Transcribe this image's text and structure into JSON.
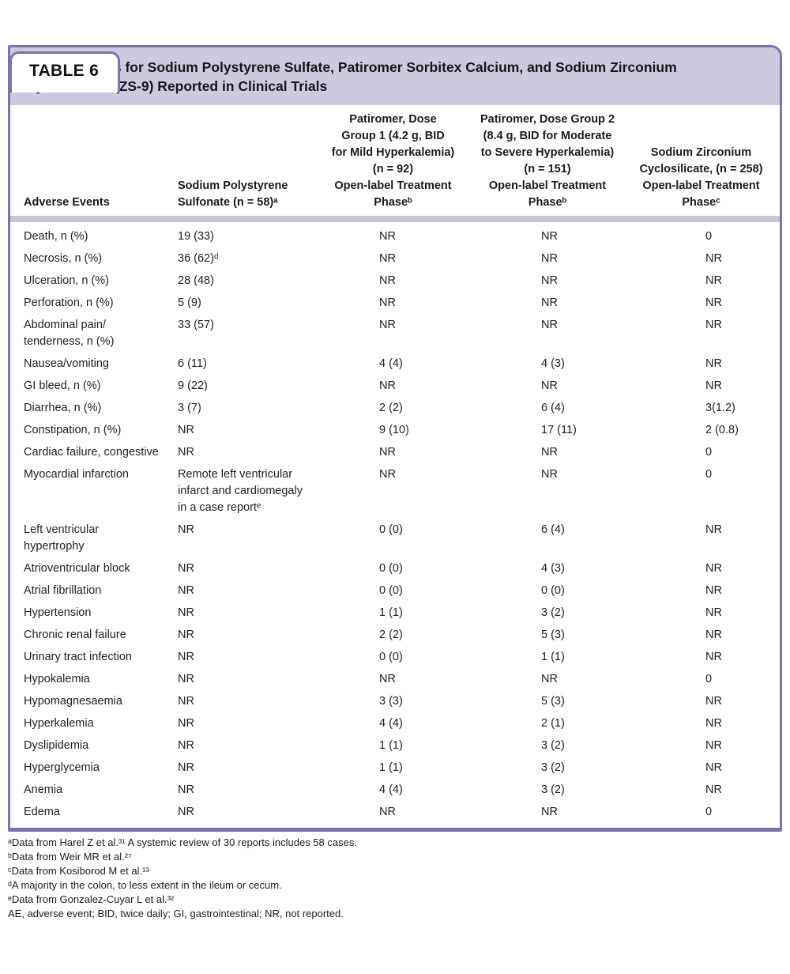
{
  "tag": "TABLE 6",
  "title": "Safety Results for Sodium Polystyrene Sulfate, Patiromer Sorbitex Calcium, and Sodium Zirconium\nCyclosilicate (ZS-9) Reported in Clinical Trials",
  "colors": {
    "border_purple": "#7a74ab",
    "title_band_lavender": "#cdcae0",
    "header_divider": "#c8c5db",
    "background": "#ffffff",
    "text": "#1e1e21"
  },
  "columns": [
    {
      "text": "Adverse Events"
    },
    {
      "text": "Sodium Polystyrene\nSulfonate (n = 58)ᵃ"
    },
    {
      "text": "Patiromer, Dose\nGroup 1 (4.2 g, BID\nfor Mild Hyperkalemia)\n(n = 92)\nOpen-label Treatment\nPhaseᵇ"
    },
    {
      "text": "Patiromer, Dose Group 2\n(8.4 g, BID for Moderate\nto Severe Hyperkalemia)\n(n = 151)\nOpen-label Treatment\nPhaseᵇ"
    },
    {
      "text": "Sodium Zirconium\nCyclosilicate, (n = 258)\nOpen-label Treatment\nPhaseᶜ"
    }
  ],
  "rows": [
    [
      "Death, n (%)",
      "19 (33)",
      "NR",
      "NR",
      "0"
    ],
    [
      "Necrosis, n (%)",
      "36 (62)ᵈ",
      "NR",
      "NR",
      "NR"
    ],
    [
      "Ulceration, n (%)",
      "28 (48)",
      "NR",
      "NR",
      "NR"
    ],
    [
      "Perforation, n (%)",
      "5 (9)",
      "NR",
      "NR",
      "NR"
    ],
    [
      "Abdominal pain/\ntenderness, n (%)",
      "33 (57)",
      "NR",
      "NR",
      "NR"
    ],
    [
      "Nausea/vomiting",
      "6 (11)",
      "4 (4)",
      "4 (3)",
      "NR"
    ],
    [
      "GI bleed, n (%)",
      "9 (22)",
      "NR",
      "NR",
      "NR"
    ],
    [
      "Diarrhea, n (%)",
      "3 (7)",
      "2 (2)",
      "6 (4)",
      "3(1.2)"
    ],
    [
      "Constipation, n (%)",
      "NR",
      "9 (10)",
      "17 (11)",
      "2 (0.8)"
    ],
    [
      "Cardiac failure, congestive",
      "NR",
      "NR",
      "NR",
      "0"
    ],
    [
      "Myocardial infarction",
      "Remote left ventricular\ninfarct and cardiomegaly\nin a case reportᵉ",
      "NR",
      "NR",
      "0"
    ],
    [
      "Left ventricular\nhypertrophy",
      "NR",
      "0 (0)",
      "6 (4)",
      "NR"
    ],
    [
      "Atrioventricular block",
      "NR",
      "0 (0)",
      "4 (3)",
      "NR"
    ],
    [
      "Atrial fibrillation",
      "NR",
      "0 (0)",
      "0 (0)",
      "NR"
    ],
    [
      "Hypertension",
      "NR",
      "1 (1)",
      "3 (2)",
      "NR"
    ],
    [
      "Chronic renal failure",
      "NR",
      "2 (2)",
      "5 (3)",
      "NR"
    ],
    [
      "Urinary tract infection",
      "NR",
      "0 (0)",
      "1 (1)",
      "NR"
    ],
    [
      "Hypokalemia",
      "NR",
      "NR",
      "NR",
      "0"
    ],
    [
      "Hypomagnesaemia",
      "NR",
      "3 (3)",
      "5 (3)",
      "NR"
    ],
    [
      "Hyperkalemia",
      "NR",
      "4 (4)",
      "2 (1)",
      "NR"
    ],
    [
      "Dyslipidemia",
      "NR",
      "1 (1)",
      "3 (2)",
      "NR"
    ],
    [
      "Hyperglycemia",
      "NR",
      "1 (1)",
      "3 (2)",
      "NR"
    ],
    [
      "Anemia",
      "NR",
      "4 (4)",
      "3 (2)",
      "NR"
    ],
    [
      "Edema",
      "NR",
      "NR",
      "NR",
      "0"
    ]
  ],
  "footnotes": [
    "ᵃData from Harel Z et al.³¹ A systemic review of 30 reports includes 58 cases.",
    "ᵇData from Weir MR et al.²⁷",
    "ᶜData from Kosiborod M et al.¹³",
    "ᵈA majority in the colon, to less extent in the ileum or cecum.",
    "ᵉData from Gonzalez-Cuyar L et al.³²",
    "AE, adverse event; BID, twice daily; GI, gastrointestinal; NR, not reported."
  ]
}
